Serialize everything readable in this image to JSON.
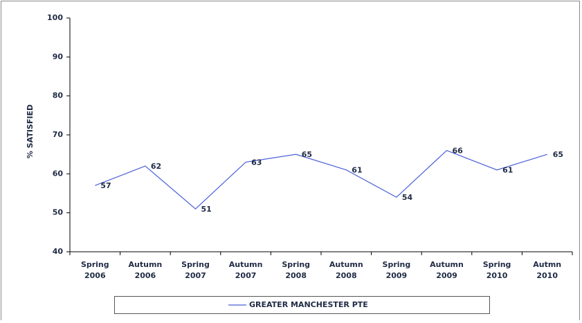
{
  "chart_data": {
    "type": "line",
    "y_label": "% SATISFIED",
    "categories": [
      "Spring 2006",
      "Autumn 2006",
      "Spring 2007",
      "Autumn 2007",
      "Spring 2008",
      "Autumn 2008",
      "Spring 2009",
      "Autumn 2009",
      "Spring 2010",
      "Autmn 2010"
    ],
    "series": [
      {
        "name": "GREATER MANCHESTER PTE",
        "color": "#4a5fd8",
        "values": [
          57,
          62,
          51,
          63,
          65,
          61,
          54,
          66,
          61,
          65
        ]
      }
    ],
    "ylim": [
      40,
      100
    ],
    "yticks": [
      40,
      50,
      60,
      70,
      80,
      90,
      100
    ],
    "grid": false,
    "legend": "bottom",
    "data_labels": true
  }
}
